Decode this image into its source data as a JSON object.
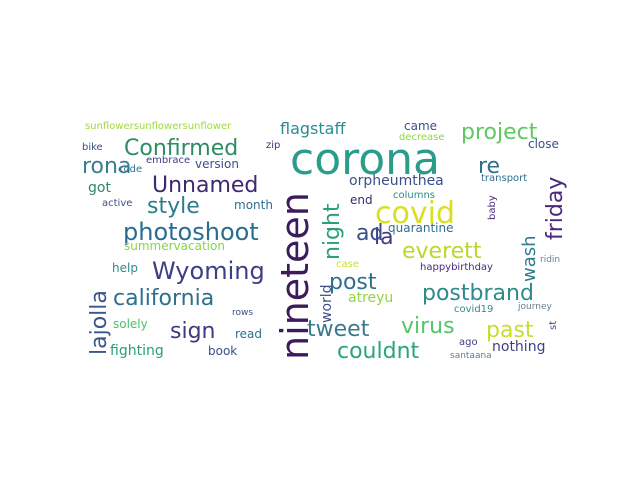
{
  "words": [
    {
      "text": "corona",
      "color": "#2a9d8a"
    },
    {
      "text": "nineteen",
      "color": "#3b1a5e"
    },
    {
      "text": "covid",
      "color": "#d9e021"
    },
    {
      "text": "photoshoot",
      "color": "#2b6d8e"
    },
    {
      "text": "california",
      "color": "#2f6f8e"
    },
    {
      "text": "Wyoming",
      "color": "#3f3e85"
    },
    {
      "text": "Confirmed",
      "color": "#2e8b64"
    },
    {
      "text": "Unnamed",
      "color": "#3b2a70"
    },
    {
      "text": "postbrand",
      "color": "#2e8a8c"
    },
    {
      "text": "couldnt",
      "color": "#29a576"
    },
    {
      "text": "project",
      "color": "#5ec962"
    },
    {
      "text": "lajolla",
      "color": "#3a568c"
    },
    {
      "text": "friday",
      "color": "#4a2a7a"
    },
    {
      "text": "everett",
      "color": "#b8d92c"
    },
    {
      "text": "virus",
      "color": "#54c568"
    },
    {
      "text": "tweet",
      "color": "#3b7a8e"
    },
    {
      "text": "night",
      "color": "#2aa079"
    },
    {
      "text": "style",
      "color": "#2b7d8e"
    },
    {
      "text": "rona",
      "color": "#3a7d8e"
    },
    {
      "text": "past",
      "color": "#c8de2a"
    },
    {
      "text": "sign",
      "color": "#3d3a7f"
    },
    {
      "text": "wash",
      "color": "#2f7b8e"
    },
    {
      "text": "post",
      "color": "#2f6f8e"
    },
    {
      "text": "flagstaff",
      "color": "#2c8c8c"
    },
    {
      "text": "la",
      "color": "#3f3e85"
    },
    {
      "text": "ad",
      "color": "#3a4f8a"
    },
    {
      "text": "re",
      "color": "#2f6f8e"
    },
    {
      "text": "orpheumthea",
      "color": "#3a4f8a"
    },
    {
      "text": "got",
      "color": "#2e8b6a"
    },
    {
      "text": "fighting",
      "color": "#2aa079"
    },
    {
      "text": "nothing",
      "color": "#3f3e85"
    },
    {
      "text": "summervacation",
      "color": "#86d549"
    },
    {
      "text": "atreyu",
      "color": "#8fd744"
    },
    {
      "text": "world",
      "color": "#3a4f8a"
    },
    {
      "text": "version",
      "color": "#3a4f8a"
    },
    {
      "text": "month",
      "color": "#2f6f8e"
    },
    {
      "text": "help",
      "color": "#2e8a8c"
    },
    {
      "text": "solely",
      "color": "#4ac16d"
    },
    {
      "text": "book",
      "color": "#3a4f8a"
    },
    {
      "text": "read",
      "color": "#2f6f8e"
    },
    {
      "text": "quarantine",
      "color": "#2f6f8e"
    },
    {
      "text": "end",
      "color": "#3b2a70"
    },
    {
      "text": "came",
      "color": "#3a4f8a"
    },
    {
      "text": "close",
      "color": "#3a4f8a"
    },
    {
      "text": "covid19",
      "color": "#2e8a8c"
    },
    {
      "text": "ago",
      "color": "#3f3e85"
    },
    {
      "text": "st",
      "color": "#3a4f8a"
    },
    {
      "text": "happybirthday",
      "color": "#4a2a7a"
    },
    {
      "text": "santaana",
      "color": "#5e7d8e"
    },
    {
      "text": "journey",
      "color": "#6a7f8e"
    },
    {
      "text": "ridin",
      "color": "#6a7f8e"
    },
    {
      "text": "baby",
      "color": "#4a2a7a"
    },
    {
      "text": "transport",
      "color": "#2f6f8e"
    },
    {
      "text": "decrease",
      "color": "#8fd744"
    },
    {
      "text": "columns",
      "color": "#2e8a8c"
    },
    {
      "text": "case",
      "color": "#c8de2a"
    },
    {
      "text": "sunflowersunflowersunflower",
      "color": "#a0da39"
    },
    {
      "text": "bike",
      "color": "#3a4f8a"
    },
    {
      "text": "embrace",
      "color": "#3f3e85"
    },
    {
      "text": "code",
      "color": "#2f6f8e"
    },
    {
      "text": "active",
      "color": "#3a4f8a"
    },
    {
      "text": "zip",
      "color": "#4a2a7a"
    },
    {
      "text": "rows",
      "color": "#3a4f8a"
    }
  ]
}
